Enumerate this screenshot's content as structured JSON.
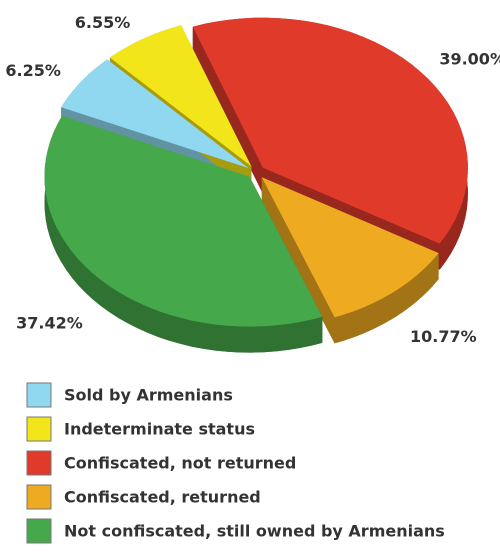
{
  "chart_data": {
    "type": "pie",
    "categories": [
      "Sold by Armenians",
      "Indeterminate status",
      "Confiscated, not returned",
      "Confiscated, returned",
      "Not confiscated, still owned by Armenians"
    ],
    "values": [
      6.25,
      6.55,
      39.0,
      10.77,
      37.42
    ],
    "value_labels": [
      "6.25%",
      "6.55%",
      "39.00%",
      "10.77%",
      "37.42%"
    ],
    "colors": [
      "#8fd8ef",
      "#f2e61a",
      "#e03a2a",
      "#eeaa20",
      "#45a84a"
    ]
  }
}
